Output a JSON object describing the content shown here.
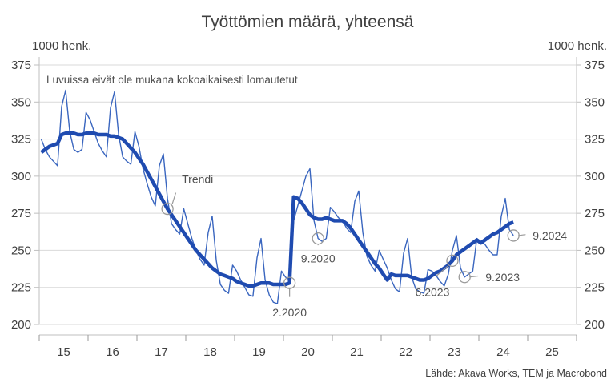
{
  "chart_data": {
    "type": "line",
    "title": "Työttömien määrä, yhteensä",
    "ylabel_left": "1000 henk.",
    "ylabel_right": "1000 henk.",
    "note": "Luvuissa eivät ole mukana kokoaikaisesti lomautetut",
    "source": "Lähde: Akava Works, TEM ja Macrobond",
    "ylim": [
      200,
      375
    ],
    "yticks": [
      200,
      225,
      250,
      275,
      300,
      325,
      350,
      375
    ],
    "xlim": [
      2015,
      2026
    ],
    "xtick_labels": [
      "15",
      "16",
      "17",
      "18",
      "19",
      "20",
      "21",
      "22",
      "23",
      "24",
      "25"
    ],
    "grid": true,
    "start": "2015-01",
    "frequency": "monthly",
    "series": [
      {
        "kind": "monthly",
        "color": "#3a66bf",
        "values": [
          325,
          318,
          313,
          310,
          307,
          347,
          358,
          330,
          318,
          316,
          318,
          343,
          338,
          330,
          322,
          317,
          313,
          346,
          357,
          328,
          313,
          310,
          308,
          330,
          320,
          305,
          295,
          286,
          280,
          307,
          315,
          285,
          268,
          264,
          261,
          278,
          268,
          258,
          250,
          244,
          240,
          262,
          273,
          243,
          227,
          223,
          221,
          240,
          236,
          230,
          225,
          220,
          219,
          245,
          258,
          230,
          220,
          215,
          214,
          236,
          232,
          230,
          270,
          280,
          290,
          300,
          305,
          270,
          258,
          256,
          258,
          279,
          276,
          272,
          270,
          265,
          262,
          283,
          290,
          262,
          246,
          240,
          236,
          250,
          244,
          238,
          230,
          224,
          222,
          248,
          258,
          232,
          224,
          222,
          221,
          237,
          236,
          233,
          229,
          226,
          234,
          250,
          260,
          238,
          232,
          234,
          236,
          258,
          256,
          254,
          250,
          247,
          247,
          273,
          285,
          264,
          260
        ]
      },
      {
        "name": "Trendi",
        "kind": "trend",
        "color": "#1f4bb0",
        "values": [
          316,
          318,
          320,
          321,
          322,
          328,
          329,
          329,
          329,
          328,
          328,
          329,
          329,
          329,
          328,
          328,
          328,
          327,
          327,
          326,
          325,
          322,
          319,
          316,
          312,
          308,
          303,
          298,
          293,
          288,
          283,
          278,
          274,
          270,
          266,
          262,
          258,
          254,
          250,
          247,
          244,
          241,
          238,
          236,
          234,
          233,
          232,
          231,
          229,
          228,
          227,
          226,
          226,
          227,
          228,
          228,
          228,
          227,
          227,
          227,
          227,
          228,
          286,
          285,
          282,
          278,
          274,
          272,
          271,
          271,
          272,
          271,
          270,
          270,
          270,
          268,
          265,
          261,
          257,
          253,
          249,
          245,
          241,
          238,
          234,
          230,
          234,
          233,
          233,
          233,
          233,
          232,
          231,
          230,
          230,
          231,
          233,
          235,
          236,
          238,
          240,
          243,
          247,
          249,
          251,
          253,
          255,
          257,
          255,
          257,
          259,
          261,
          262,
          264,
          266,
          268,
          269
        ]
      }
    ],
    "annotations": [
      {
        "label": "Trendi",
        "date": "2017-08",
        "series": "trend"
      },
      {
        "label": "2.2020",
        "date": "2020-02",
        "series": "trend"
      },
      {
        "label": "9.2020",
        "date": "2020-09",
        "series": "monthly"
      },
      {
        "label": "6.2023",
        "date": "2023-06",
        "series": "trend"
      },
      {
        "label": "9.2023",
        "date": "2023-09",
        "series": "monthly"
      },
      {
        "label": "9.2024",
        "date": "2024-09",
        "series": "monthly"
      }
    ]
  }
}
